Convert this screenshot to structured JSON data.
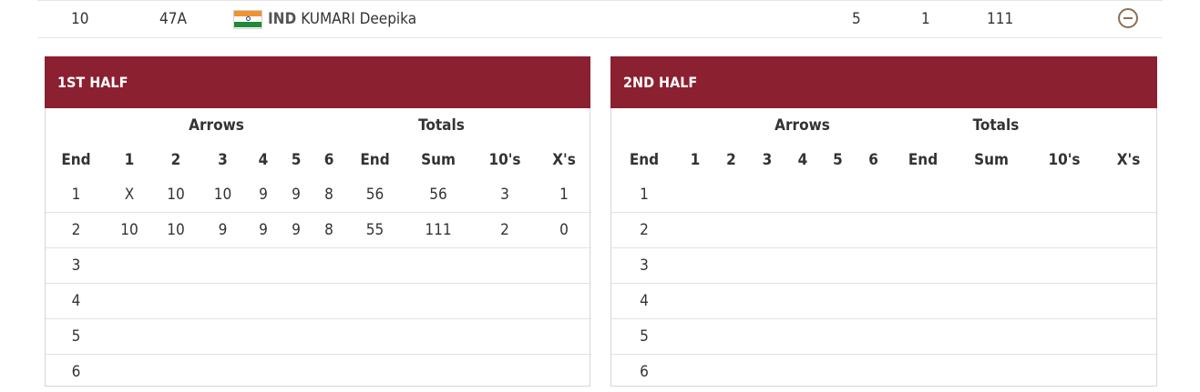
{
  "athlete_row": {
    "rank": "10",
    "target": "47A",
    "noc": "IND",
    "name": "KUMARI Deepika",
    "flag_icon": "india-flag-icon",
    "col1": "5",
    "col2": "1",
    "col3": "111",
    "collapse_icon": "minus-circle-icon",
    "accent_color": "#8c7052"
  },
  "colors": {
    "header_bg": "#8b2030",
    "header_text": "#ffffff"
  },
  "halves": [
    {
      "title": "1ST HALF",
      "group_arrows": "Arrows",
      "group_totals": "Totals",
      "columns": [
        "End",
        "1",
        "2",
        "3",
        "4",
        "5",
        "6",
        "End",
        "Sum",
        "10's",
        "X's"
      ],
      "rows": [
        [
          "1",
          "X",
          "10",
          "10",
          "9",
          "9",
          "8",
          "56",
          "56",
          "3",
          "1"
        ],
        [
          "2",
          "10",
          "10",
          "9",
          "9",
          "9",
          "8",
          "55",
          "111",
          "2",
          "0"
        ],
        [
          "3",
          "",
          "",
          "",
          "",
          "",
          "",
          "",
          "",
          "",
          ""
        ],
        [
          "4",
          "",
          "",
          "",
          "",
          "",
          "",
          "",
          "",
          "",
          ""
        ],
        [
          "5",
          "",
          "",
          "",
          "",
          "",
          "",
          "",
          "",
          "",
          ""
        ],
        [
          "6",
          "",
          "",
          "",
          "",
          "",
          "",
          "",
          "",
          "",
          ""
        ]
      ]
    },
    {
      "title": "2ND HALF",
      "group_arrows": "Arrows",
      "group_totals": "Totals",
      "columns": [
        "End",
        "1",
        "2",
        "3",
        "4",
        "5",
        "6",
        "End",
        "Sum",
        "10's",
        "X's"
      ],
      "rows": [
        [
          "1",
          "",
          "",
          "",
          "",
          "",
          "",
          "",
          "",
          "",
          ""
        ],
        [
          "2",
          "",
          "",
          "",
          "",
          "",
          "",
          "",
          "",
          "",
          ""
        ],
        [
          "3",
          "",
          "",
          "",
          "",
          "",
          "",
          "",
          "",
          "",
          ""
        ],
        [
          "4",
          "",
          "",
          "",
          "",
          "",
          "",
          "",
          "",
          "",
          ""
        ],
        [
          "5",
          "",
          "",
          "",
          "",
          "",
          "",
          "",
          "",
          "",
          ""
        ],
        [
          "6",
          "",
          "",
          "",
          "",
          "",
          "",
          "",
          "",
          "",
          ""
        ]
      ]
    }
  ]
}
